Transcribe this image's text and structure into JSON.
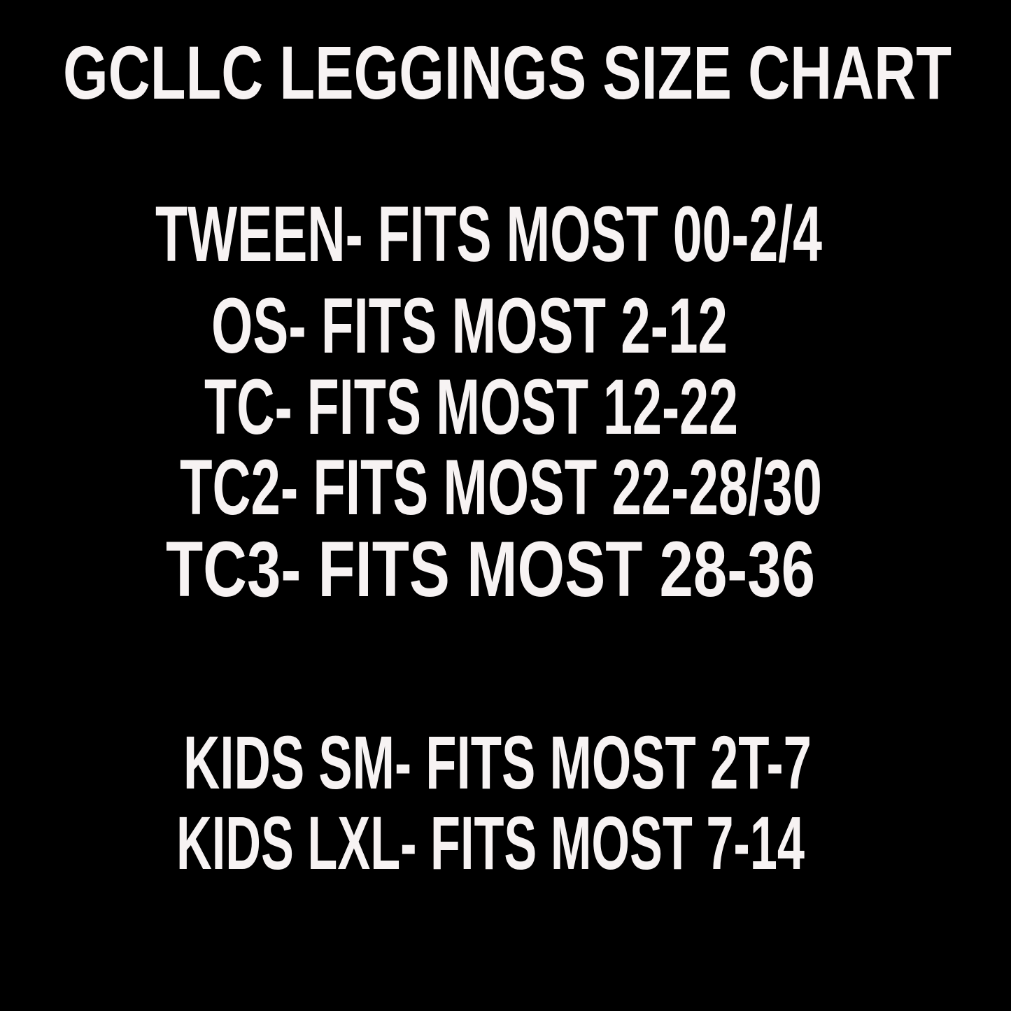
{
  "title": "GCLLC LEGGINGS SIZE CHART",
  "sizes": [
    "TWEEN- FITS MOST 00-2/4",
    "OS- FITS MOST 2-12",
    "TC- FITS MOST 12-22",
    "TC2- FITS MOST 22-28/30",
    "TC3- FITS MOST 28-36"
  ],
  "kids_sizes": [
    "KIDS SM- FITS MOST 2T-7",
    "KIDS LXL- FITS MOST 7-14"
  ],
  "colors": {
    "background": "#000000",
    "text": "#f7f3f3"
  }
}
